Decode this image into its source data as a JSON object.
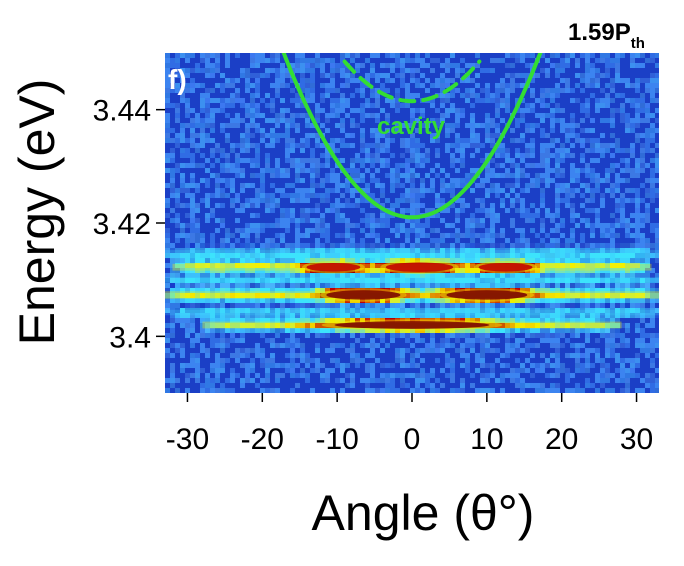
{
  "panel_label": "f)",
  "power_label": {
    "main": "1.59P",
    "sub": "th"
  },
  "colors": {
    "background_low": "#1b3fc6",
    "background_high": "#4aa2ff",
    "band_cyan": "#3fe0ff",
    "band_yellow": "#f5f000",
    "band_red": "#c20000",
    "band_darkred": "#7a0000",
    "curve": "#33dd33"
  },
  "chart_data": {
    "type": "heatmap",
    "xlabel": "Angle (θ°)",
    "ylabel": "Energy (eV)",
    "xlim": [
      -33,
      33
    ],
    "ylim": [
      3.39,
      3.45
    ],
    "x_ticks": [
      -30,
      -20,
      -10,
      0,
      10,
      20,
      30
    ],
    "y_ticks": [
      3.4,
      3.42,
      3.44
    ],
    "y_tick_labels": [
      "3.4",
      "3.42",
      "3.44"
    ],
    "x_tick_labels": [
      "-30",
      "-20",
      "-10",
      "0",
      "10",
      "20",
      "30"
    ],
    "curves": [
      {
        "label": "",
        "style": "solid",
        "formula": "parabola",
        "vertex": [
          0,
          3.421
        ],
        "points": [
          [
            -18,
            3.453
          ],
          [
            -12,
            3.4356
          ],
          [
            -6,
            3.4246
          ],
          [
            0,
            3.421
          ],
          [
            6,
            3.4246
          ],
          [
            12,
            3.4356
          ],
          [
            18,
            3.453
          ]
        ]
      },
      {
        "label": "cavity",
        "style": "dashed",
        "formula": "parabola",
        "vertex": [
          0,
          3.4415
        ],
        "points": [
          [
            -9,
            3.4485
          ],
          [
            -4,
            3.4429
          ],
          [
            0,
            3.4415
          ],
          [
            4,
            3.4429
          ],
          [
            9,
            3.4485
          ]
        ]
      }
    ],
    "emission_bands": [
      {
        "energy": 3.4145,
        "x_range": [
          -33,
          33
        ],
        "halfwidth": 0.0012,
        "peak": 0.3
      },
      {
        "energy": 3.4122,
        "x_range": [
          -32,
          32
        ],
        "halfwidth": 0.001,
        "peak": 0.55
      },
      {
        "energy": 3.41,
        "x_range": [
          -33,
          33
        ],
        "halfwidth": 0.0008,
        "peak": 0.3
      },
      {
        "energy": 3.4073,
        "x_range": [
          -33,
          33
        ],
        "halfwidth": 0.0011,
        "peak": 0.55
      },
      {
        "energy": 3.4042,
        "x_range": [
          -33,
          33
        ],
        "halfwidth": 0.0008,
        "peak": 0.3
      },
      {
        "energy": 3.402,
        "x_range": [
          -28,
          28
        ],
        "halfwidth": 0.001,
        "peak": 0.5
      }
    ],
    "emission_lobes": [
      {
        "energy": 3.4122,
        "x_center": -10.5,
        "x_halfwidth": 4.0,
        "e_halfwidth": 0.001,
        "peak": 1.0
      },
      {
        "energy": 3.4122,
        "x_center": 1.0,
        "x_halfwidth": 5.0,
        "e_halfwidth": 0.0011,
        "peak": 1.0
      },
      {
        "energy": 3.4122,
        "x_center": 12.5,
        "x_halfwidth": 4.0,
        "e_halfwidth": 0.001,
        "peak": 0.9
      },
      {
        "energy": 3.4073,
        "x_center": -6.5,
        "x_halfwidth": 5.5,
        "e_halfwidth": 0.0011,
        "peak": 1.1
      },
      {
        "energy": 3.4073,
        "x_center": 10.0,
        "x_halfwidth": 6.0,
        "e_halfwidth": 0.0011,
        "peak": 1.1
      },
      {
        "energy": 3.402,
        "x_center": 0.0,
        "x_halfwidth": 11.5,
        "e_halfwidth": 0.0009,
        "peak": 1.2
      }
    ]
  }
}
